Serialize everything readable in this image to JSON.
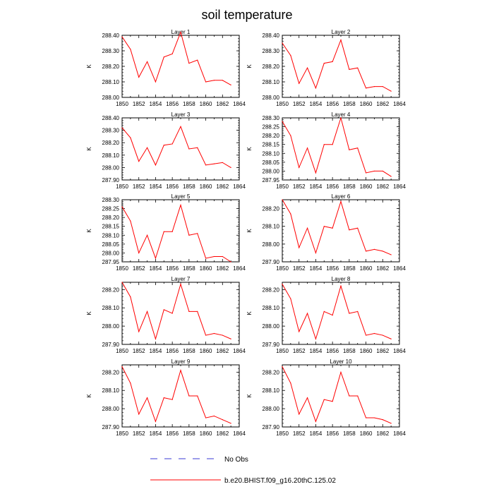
{
  "title": "soil temperature",
  "colors": {
    "model": "#ff0000",
    "obs": "#3b3bd6",
    "axis": "#000000"
  },
  "legend": {
    "obs_label": "No Obs",
    "model_label": "b.e20.BHIST.f09_g16.20thC.125.02"
  },
  "chart_data": [
    {
      "type": "line",
      "title": "Layer 1",
      "ylabel": "K",
      "xlim": [
        1850,
        1864
      ],
      "ylim": [
        288.0,
        288.4
      ],
      "xticks": [
        "1850",
        "1852",
        "1854",
        "1856",
        "1858",
        "1860",
        "1862",
        "1864"
      ],
      "yticks": [
        "288.00",
        "288.10",
        "288.20",
        "288.30",
        "288.40"
      ],
      "x": [
        1850,
        1851,
        1852,
        1853,
        1854,
        1855,
        1856,
        1857,
        1858,
        1859,
        1860,
        1861,
        1862,
        1863
      ],
      "series": [
        {
          "name": "b.e20.BHIST.f09_g16.20thC.125.02",
          "values": [
            288.39,
            288.31,
            288.13,
            288.23,
            288.1,
            288.26,
            288.28,
            288.42,
            288.22,
            288.24,
            288.1,
            288.11,
            288.11,
            288.08
          ]
        }
      ]
    },
    {
      "type": "line",
      "title": "Layer 2",
      "ylabel": "K",
      "xlim": [
        1850,
        1864
      ],
      "ylim": [
        288.0,
        288.4
      ],
      "xticks": [
        "1850",
        "1852",
        "1854",
        "1856",
        "1858",
        "1860",
        "1862",
        "1864"
      ],
      "yticks": [
        "288.00",
        "288.10",
        "288.20",
        "288.30",
        "288.40"
      ],
      "x": [
        1850,
        1851,
        1852,
        1853,
        1854,
        1855,
        1856,
        1857,
        1858,
        1859,
        1860,
        1861,
        1862,
        1863
      ],
      "series": [
        {
          "name": "b.e20.BHIST.f09_g16.20thC.125.02",
          "values": [
            288.35,
            288.27,
            288.09,
            288.19,
            288.06,
            288.22,
            288.23,
            288.37,
            288.18,
            288.19,
            288.06,
            288.07,
            288.07,
            288.04
          ]
        }
      ]
    },
    {
      "type": "line",
      "title": "Layer 3",
      "ylabel": "K",
      "xlim": [
        1850,
        1864
      ],
      "ylim": [
        287.9,
        288.4
      ],
      "xticks": [
        "1850",
        "1852",
        "1854",
        "1856",
        "1858",
        "1860",
        "1862",
        "1864"
      ],
      "yticks": [
        "287.90",
        "288.00",
        "288.10",
        "288.20",
        "288.30",
        "288.40"
      ],
      "x": [
        1850,
        1851,
        1852,
        1853,
        1854,
        1855,
        1856,
        1857,
        1858,
        1859,
        1860,
        1861,
        1862,
        1863
      ],
      "series": [
        {
          "name": "b.e20.BHIST.f09_g16.20thC.125.02",
          "values": [
            288.32,
            288.24,
            288.05,
            288.16,
            288.02,
            288.18,
            288.19,
            288.33,
            288.15,
            288.16,
            288.02,
            288.03,
            288.04,
            288.0
          ]
        }
      ]
    },
    {
      "type": "line",
      "title": "Layer 4",
      "ylabel": "K",
      "xlim": [
        1850,
        1864
      ],
      "ylim": [
        287.95,
        288.3
      ],
      "xticks": [
        "1850",
        "1852",
        "1854",
        "1856",
        "1858",
        "1860",
        "1862",
        "1864"
      ],
      "yticks": [
        "287.95",
        "288.00",
        "288.05",
        "288.10",
        "288.15",
        "288.20",
        "288.25",
        "288.30"
      ],
      "x": [
        1850,
        1851,
        1852,
        1853,
        1854,
        1855,
        1856,
        1857,
        1858,
        1859,
        1860,
        1861,
        1862,
        1863
      ],
      "series": [
        {
          "name": "b.e20.BHIST.f09_g16.20thC.125.02",
          "values": [
            288.28,
            288.2,
            288.02,
            288.13,
            287.99,
            288.15,
            288.15,
            288.3,
            288.12,
            288.13,
            287.99,
            288.0,
            288.0,
            287.97
          ]
        }
      ]
    },
    {
      "type": "line",
      "title": "Layer 5",
      "ylabel": "K",
      "xlim": [
        1850,
        1864
      ],
      "ylim": [
        287.95,
        288.3
      ],
      "xticks": [
        "1850",
        "1852",
        "1854",
        "1856",
        "1858",
        "1860",
        "1862",
        "1864"
      ],
      "yticks": [
        "287.95",
        "288.00",
        "288.05",
        "288.10",
        "288.15",
        "288.20",
        "288.25",
        "288.30"
      ],
      "x": [
        1850,
        1851,
        1852,
        1853,
        1854,
        1855,
        1856,
        1857,
        1858,
        1859,
        1860,
        1861,
        1862,
        1863
      ],
      "series": [
        {
          "name": "b.e20.BHIST.f09_g16.20thC.125.02",
          "values": [
            288.26,
            288.18,
            288.0,
            288.1,
            287.97,
            288.12,
            288.12,
            288.27,
            288.1,
            288.11,
            287.97,
            287.98,
            287.98,
            287.95
          ]
        }
      ]
    },
    {
      "type": "line",
      "title": "Layer 6",
      "ylabel": "K",
      "xlim": [
        1850,
        1864
      ],
      "ylim": [
        287.9,
        288.25
      ],
      "xticks": [
        "1850",
        "1852",
        "1854",
        "1856",
        "1858",
        "1860",
        "1862",
        "1864"
      ],
      "yticks": [
        "287.90",
        "288.00",
        "288.10",
        "288.20"
      ],
      "x": [
        1850,
        1851,
        1852,
        1853,
        1854,
        1855,
        1856,
        1857,
        1858,
        1859,
        1860,
        1861,
        1862,
        1863
      ],
      "series": [
        {
          "name": "b.e20.BHIST.f09_g16.20thC.125.02",
          "values": [
            288.25,
            288.17,
            287.98,
            288.09,
            287.95,
            288.1,
            288.09,
            288.24,
            288.08,
            288.09,
            287.96,
            287.97,
            287.96,
            287.94
          ]
        }
      ]
    },
    {
      "type": "line",
      "title": "Layer 7",
      "ylabel": "K",
      "xlim": [
        1850,
        1864
      ],
      "ylim": [
        287.9,
        288.24
      ],
      "xticks": [
        "1850",
        "1852",
        "1854",
        "1856",
        "1858",
        "1860",
        "1862",
        "1864"
      ],
      "yticks": [
        "287.90",
        "288.00",
        "288.10",
        "288.20"
      ],
      "x": [
        1850,
        1851,
        1852,
        1853,
        1854,
        1855,
        1856,
        1857,
        1858,
        1859,
        1860,
        1861,
        1862,
        1863
      ],
      "series": [
        {
          "name": "b.e20.BHIST.f09_g16.20thC.125.02",
          "values": [
            288.24,
            288.16,
            287.97,
            288.08,
            287.93,
            288.09,
            288.07,
            288.23,
            288.08,
            288.08,
            287.95,
            287.96,
            287.95,
            287.93
          ]
        }
      ]
    },
    {
      "type": "line",
      "title": "Layer 8",
      "ylabel": "K",
      "xlim": [
        1850,
        1864
      ],
      "ylim": [
        287.9,
        288.24
      ],
      "xticks": [
        "1850",
        "1852",
        "1854",
        "1856",
        "1858",
        "1860",
        "1862",
        "1864"
      ],
      "yticks": [
        "287.90",
        "288.00",
        "288.10",
        "288.20"
      ],
      "x": [
        1850,
        1851,
        1852,
        1853,
        1854,
        1855,
        1856,
        1857,
        1858,
        1859,
        1860,
        1861,
        1862,
        1863
      ],
      "series": [
        {
          "name": "b.e20.BHIST.f09_g16.20thC.125.02",
          "values": [
            288.23,
            288.15,
            287.97,
            288.07,
            287.93,
            288.08,
            288.06,
            288.22,
            288.07,
            288.08,
            287.95,
            287.96,
            287.95,
            287.93
          ]
        }
      ]
    },
    {
      "type": "line",
      "title": "Layer 9",
      "ylabel": "K",
      "xlim": [
        1850,
        1864
      ],
      "ylim": [
        287.9,
        288.24
      ],
      "xticks": [
        "1850",
        "1852",
        "1854",
        "1856",
        "1858",
        "1860",
        "1862",
        "1864"
      ],
      "yticks": [
        "287.90",
        "288.00",
        "288.10",
        "288.20"
      ],
      "x": [
        1850,
        1851,
        1852,
        1853,
        1854,
        1855,
        1856,
        1857,
        1858,
        1859,
        1860,
        1861,
        1862,
        1863
      ],
      "series": [
        {
          "name": "b.e20.BHIST.f09_g16.20thC.125.02",
          "values": [
            288.23,
            288.14,
            287.97,
            288.06,
            287.93,
            288.06,
            288.05,
            288.21,
            288.07,
            288.07,
            287.95,
            287.96,
            287.94,
            287.92
          ]
        }
      ]
    },
    {
      "type": "line",
      "title": "Layer 10",
      "ylabel": "K",
      "xlim": [
        1850,
        1864
      ],
      "ylim": [
        287.9,
        288.24
      ],
      "xticks": [
        "1850",
        "1852",
        "1854",
        "1856",
        "1858",
        "1860",
        "1862",
        "1864"
      ],
      "yticks": [
        "287.90",
        "288.00",
        "288.10",
        "288.20"
      ],
      "x": [
        1850,
        1851,
        1852,
        1853,
        1854,
        1855,
        1856,
        1857,
        1858,
        1859,
        1860,
        1861,
        1862,
        1863
      ],
      "series": [
        {
          "name": "b.e20.BHIST.f09_g16.20thC.125.02",
          "values": [
            288.23,
            288.14,
            287.97,
            288.06,
            287.93,
            288.05,
            288.04,
            288.2,
            288.07,
            288.07,
            287.95,
            287.95,
            287.94,
            287.92
          ]
        }
      ]
    }
  ]
}
